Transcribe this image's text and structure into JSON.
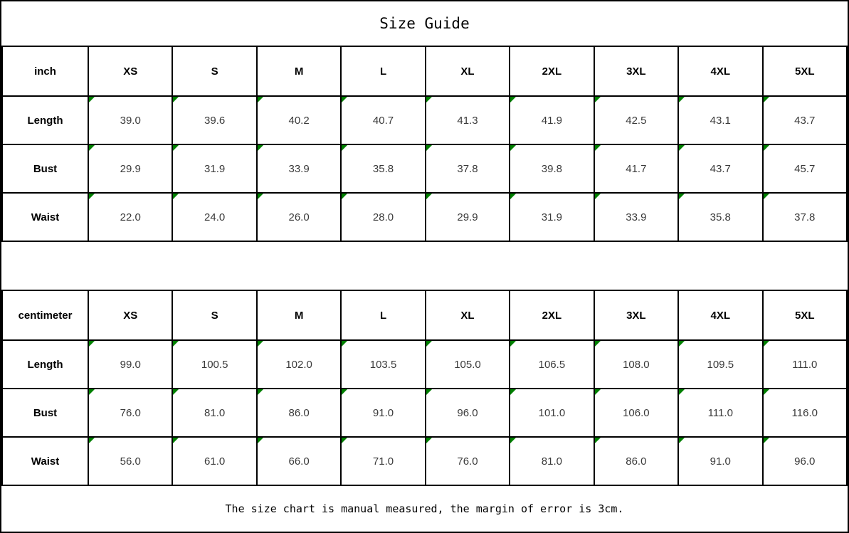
{
  "title": "Size Guide",
  "footer_note": "The size chart is manual measured, the margin of error is 3cm.",
  "marker_color": "#008000",
  "chart_data": [
    {
      "type": "table",
      "title": "Size Guide",
      "unit": "inch",
      "columns": [
        "XS",
        "S",
        "M",
        "L",
        "XL",
        "2XL",
        "3XL",
        "4XL",
        "5XL"
      ],
      "rows": [
        {
          "label": "Length",
          "values": [
            "39.0",
            "39.6",
            "40.2",
            "40.7",
            "41.3",
            "41.9",
            "42.5",
            "43.1",
            "43.7"
          ]
        },
        {
          "label": "Bust",
          "values": [
            "29.9",
            "31.9",
            "33.9",
            "35.8",
            "37.8",
            "39.8",
            "41.7",
            "43.7",
            "45.7"
          ]
        },
        {
          "label": "Waist",
          "values": [
            "22.0",
            "24.0",
            "26.0",
            "28.0",
            "29.9",
            "31.9",
            "33.9",
            "35.8",
            "37.8"
          ]
        }
      ]
    },
    {
      "type": "table",
      "title": "Size Guide",
      "unit": "centimeter",
      "columns": [
        "XS",
        "S",
        "M",
        "L",
        "XL",
        "2XL",
        "3XL",
        "4XL",
        "5XL"
      ],
      "rows": [
        {
          "label": "Length",
          "values": [
            "99.0",
            "100.5",
            "102.0",
            "103.5",
            "105.0",
            "106.5",
            "108.0",
            "109.5",
            "111.0"
          ]
        },
        {
          "label": "Bust",
          "values": [
            "76.0",
            "81.0",
            "86.0",
            "91.0",
            "96.0",
            "101.0",
            "106.0",
            "111.0",
            "116.0"
          ]
        },
        {
          "label": "Waist",
          "values": [
            "56.0",
            "61.0",
            "66.0",
            "71.0",
            "76.0",
            "81.0",
            "86.0",
            "91.0",
            "96.0"
          ]
        }
      ]
    }
  ]
}
